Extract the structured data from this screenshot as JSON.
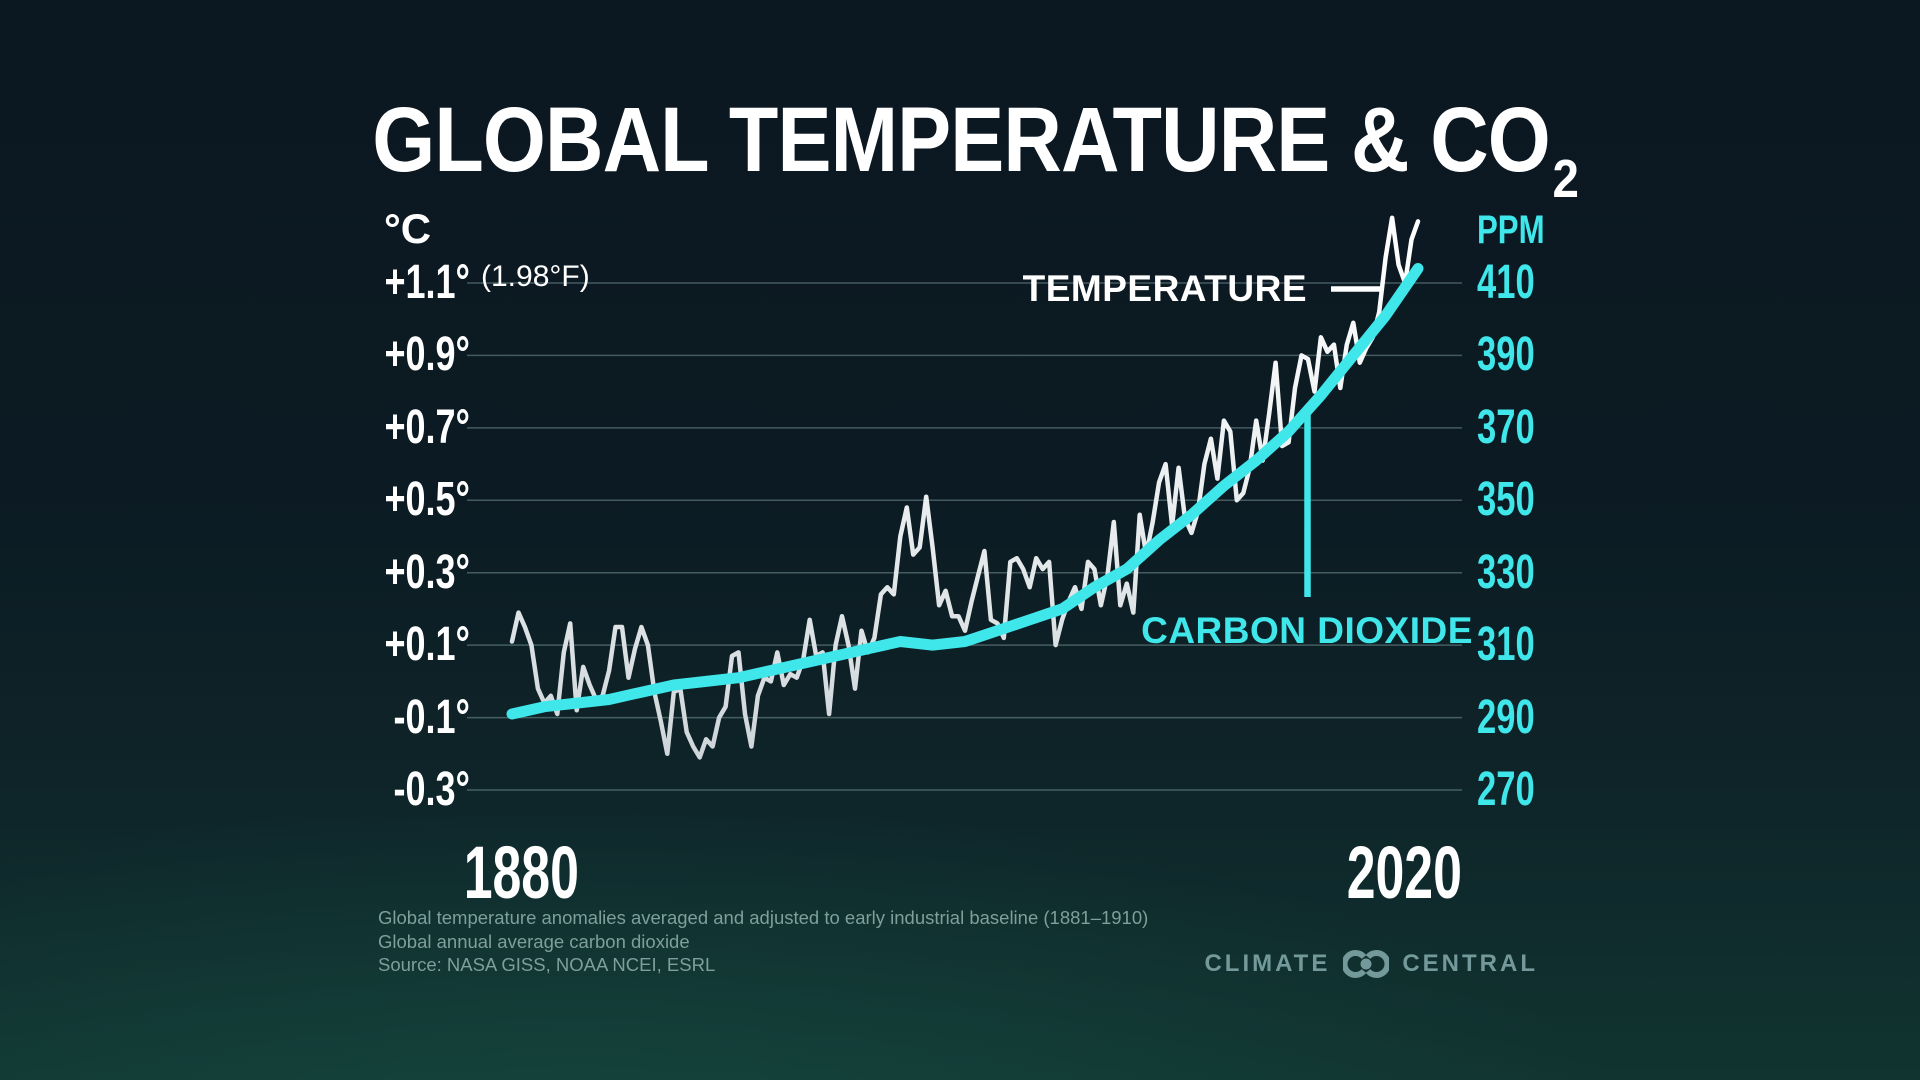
{
  "title": {
    "text": "GLOBAL TEMPERATURE & CO",
    "subscript": "2"
  },
  "left_axis": {
    "unit": "°C",
    "annotation": "(1.98°F)",
    "ticks": [
      "+1.1°",
      "+0.9°",
      "+0.7°",
      "+0.5°",
      "+0.3°",
      "+0.1°",
      "-0.1°",
      "-0.3°"
    ]
  },
  "right_axis": {
    "unit": "PPM",
    "ticks": [
      "410",
      "390",
      "370",
      "350",
      "330",
      "310",
      "290",
      "270"
    ]
  },
  "x_axis": {
    "start_label": "1880",
    "end_label": "2020"
  },
  "annotations": {
    "temperature": "TEMPERATURE",
    "carbon_dioxide": "CARBON DIOXIDE"
  },
  "footnotes": {
    "line1": "Global temperature anomalies averaged and adjusted to early industrial baseline (1881–1910)",
    "line2": "Global annual average carbon dioxide",
    "line3": "Source: NASA GISS, NOAA NCEI, ESRL"
  },
  "logo": {
    "word1": "CLIMATE",
    "word2": "CENTRAL",
    "mark": "interlocking-rings-logo"
  },
  "colors": {
    "background_top": "#0B1721",
    "background_bottom": "#113430",
    "cyan": "#3FE6EA",
    "white": "#FFFFFF",
    "grid": "#9FC4C4",
    "temp_line": "#E9EDEF",
    "footnote": "#7E9F9B",
    "logo": "#74999A"
  },
  "chart_data": {
    "type": "line",
    "title": "GLOBAL TEMPERATURE & CO2",
    "x_range": [
      1880,
      2020
    ],
    "grid": "horizontal-only",
    "legend_position": "inline-annotations",
    "axes": {
      "left": {
        "unit": "°C",
        "ticks": [
          1.1,
          0.9,
          0.7,
          0.5,
          0.3,
          0.1,
          -0.1,
          -0.3
        ],
        "top_tick_fahrenheit": "(1.98°F)"
      },
      "right": {
        "unit": "PPM",
        "ticks": [
          410,
          390,
          370,
          350,
          330,
          310,
          290,
          270
        ]
      }
    },
    "series": [
      {
        "name": "TEMPERATURE",
        "unit": "°C anomaly vs 1881–1910 baseline",
        "color": "#E9EDEF",
        "start_year": 1880,
        "step": 1,
        "values": [
          0.11,
          0.19,
          0.15,
          0.1,
          -0.02,
          -0.06,
          -0.04,
          -0.09,
          0.08,
          0.16,
          -0.08,
          0.04,
          -0.01,
          -0.05,
          -0.04,
          0.03,
          0.15,
          0.15,
          0.01,
          0.09,
          0.15,
          0.1,
          -0.03,
          -0.11,
          -0.2,
          -0.03,
          -0.02,
          -0.14,
          -0.18,
          -0.21,
          -0.16,
          -0.18,
          -0.1,
          -0.07,
          0.07,
          0.08,
          -0.09,
          -0.18,
          -0.04,
          0.01,
          0.0,
          0.08,
          -0.01,
          0.02,
          0.01,
          0.06,
          0.17,
          0.07,
          0.08,
          -0.09,
          0.1,
          0.18,
          0.1,
          -0.02,
          0.14,
          0.08,
          0.12,
          0.24,
          0.26,
          0.24,
          0.4,
          0.48,
          0.35,
          0.37,
          0.51,
          0.37,
          0.21,
          0.25,
          0.18,
          0.18,
          0.14,
          0.22,
          0.29,
          0.36,
          0.17,
          0.16,
          0.12,
          0.33,
          0.34,
          0.31,
          0.26,
          0.34,
          0.31,
          0.33,
          0.1,
          0.17,
          0.22,
          0.26,
          0.2,
          0.33,
          0.31,
          0.21,
          0.29,
          0.44,
          0.21,
          0.27,
          0.19,
          0.46,
          0.35,
          0.44,
          0.55,
          0.6,
          0.43,
          0.59,
          0.45,
          0.41,
          0.47,
          0.6,
          0.67,
          0.56,
          0.72,
          0.69,
          0.5,
          0.52,
          0.59,
          0.72,
          0.61,
          0.74,
          0.88,
          0.65,
          0.66,
          0.81,
          0.9,
          0.89,
          0.8,
          0.95,
          0.91,
          0.93,
          0.81,
          0.93,
          0.99,
          0.88,
          0.92,
          0.95,
          1.02,
          1.17,
          1.28,
          1.15,
          1.1,
          1.22,
          1.27
        ]
      },
      {
        "name": "CARBON DIOXIDE",
        "unit": "PPM",
        "color": "#3FE6EA",
        "years": [
          1880,
          1885,
          1890,
          1895,
          1900,
          1905,
          1910,
          1915,
          1920,
          1925,
          1930,
          1935,
          1940,
          1945,
          1950,
          1955,
          1960,
          1965,
          1970,
          1975,
          1980,
          1985,
          1990,
          1995,
          2000,
          2005,
          2010,
          2015,
          2020
        ],
        "values": [
          291,
          293,
          294,
          295,
          297,
          299,
          300,
          301,
          303,
          305,
          307,
          309,
          311,
          310,
          311,
          314,
          317,
          320,
          326,
          331,
          339,
          346,
          354,
          361,
          369,
          379,
          390,
          401,
          414
        ]
      }
    ]
  }
}
